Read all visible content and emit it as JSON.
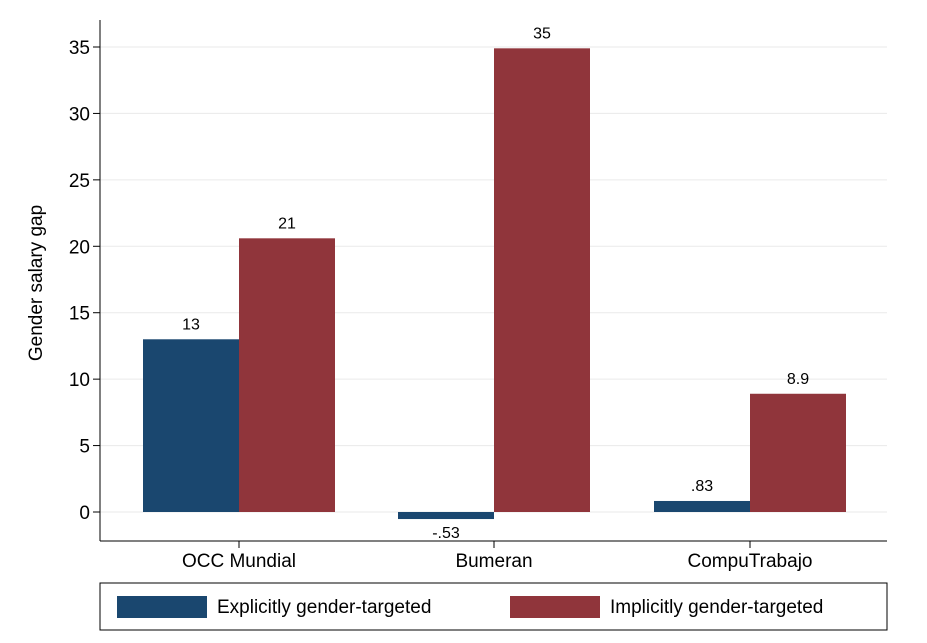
{
  "chart_data": {
    "type": "bar",
    "categories": [
      "OCC Mundial",
      "Bumeran",
      "CompuTrabajo"
    ],
    "series": [
      {
        "name": "Explicitly gender-targeted",
        "values": [
          13,
          -0.53,
          0.83
        ],
        "labels": [
          "13",
          "-.53",
          ".83"
        ],
        "color": "#1a476f"
      },
      {
        "name": "Implicitly gender-targeted",
        "values": [
          20.6,
          34.9,
          8.9
        ],
        "labels": [
          "21",
          "35",
          "8.9"
        ],
        "color": "#90353b"
      }
    ],
    "title": "",
    "xlabel": "",
    "ylabel": "Gender salary gap",
    "ylim": [
      -2,
      36.5
    ],
    "yticks": [
      0,
      5,
      10,
      15,
      20,
      25,
      30,
      35
    ],
    "grid": true,
    "legend_position": "bottom"
  }
}
